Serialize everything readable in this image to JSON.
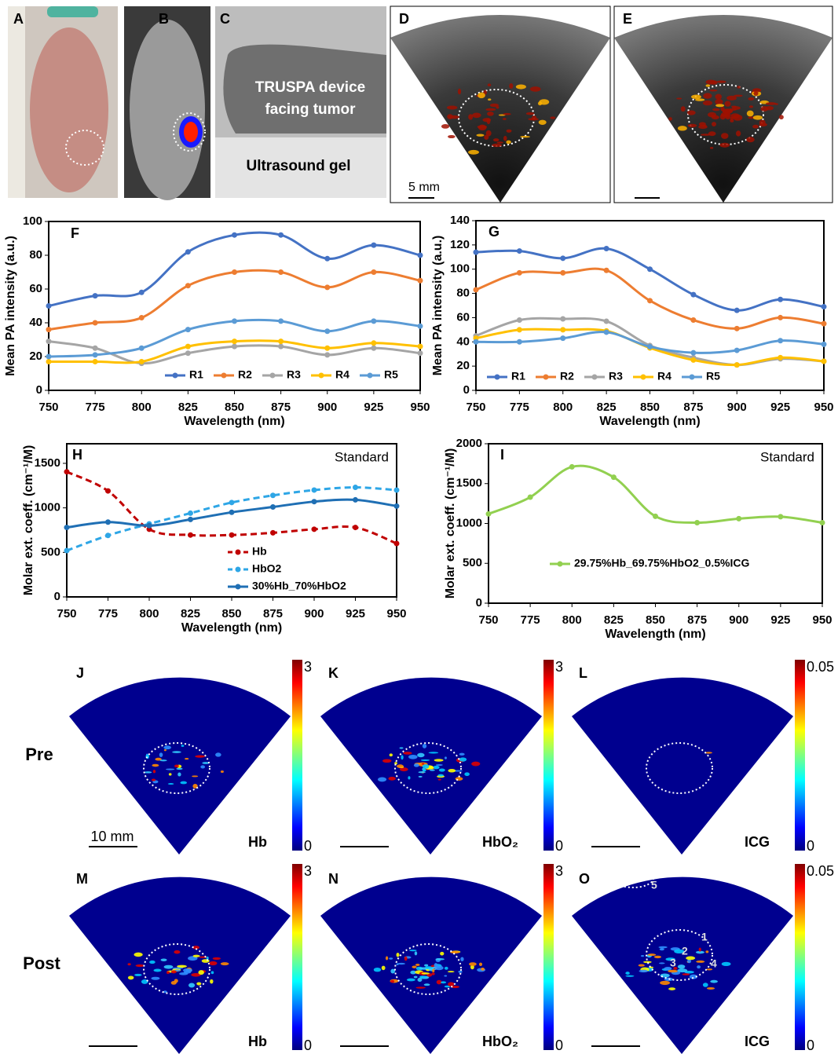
{
  "images": {
    "labels": [
      "A",
      "B",
      "C",
      "D",
      "E",
      "F",
      "G",
      "H",
      "I",
      "J",
      "K",
      "L",
      "M",
      "N",
      "O"
    ],
    "c_device_line1": "TRUSPA device",
    "c_device_line2": "facing tumor",
    "c_gel": "Ultrasound gel",
    "d_scale": "5 mm",
    "j_scale": "10 mm",
    "rows": [
      "Pre",
      "Post"
    ],
    "maps": [
      "Hb",
      "HbO₂",
      "ICG"
    ],
    "colorbar_max": [
      "3",
      "3",
      "0.05"
    ],
    "colorbar_min": "0",
    "regions": [
      "1",
      "2",
      "3",
      "4",
      "5"
    ]
  },
  "chart_data": [
    {
      "type": "line",
      "x_label": "Wavelength (nm)",
      "y_label": "Mean PA intensity (a.u.)",
      "x": [
        750,
        775,
        800,
        825,
        850,
        875,
        900,
        925,
        950
      ],
      "xlim": [
        750,
        950
      ],
      "xticks": [
        750,
        775,
        800,
        825,
        850,
        875,
        900,
        925,
        950
      ],
      "ylim": [
        0,
        100
      ],
      "yticks": [
        0,
        20,
        40,
        60,
        80,
        100
      ],
      "legend": "lower center",
      "series": [
        {
          "name": "R1",
          "color": "#4472c4",
          "values": [
            50,
            56,
            58,
            82,
            92,
            92,
            78,
            86,
            80
          ]
        },
        {
          "name": "R2",
          "color": "#ed7d31",
          "values": [
            36,
            40,
            43,
            62,
            70,
            70,
            61,
            70,
            65
          ]
        },
        {
          "name": "R3",
          "color": "#a5a5a5",
          "values": [
            29,
            25,
            16,
            22,
            26,
            26,
            21,
            25,
            22
          ]
        },
        {
          "name": "R4",
          "color": "#ffc000",
          "values": [
            17,
            17,
            17,
            26,
            29,
            29,
            25,
            28,
            26
          ]
        },
        {
          "name": "R5",
          "color": "#5b9bd5",
          "values": [
            20,
            21,
            25,
            36,
            41,
            41,
            35,
            41,
            38
          ]
        }
      ]
    },
    {
      "type": "line",
      "x_label": "Wavelength (nm)",
      "y_label": "Mean PA intensity (a.u.)",
      "x": [
        750,
        775,
        800,
        825,
        850,
        875,
        900,
        925,
        950
      ],
      "xlim": [
        750,
        950
      ],
      "xticks": [
        750,
        775,
        800,
        825,
        850,
        875,
        900,
        925,
        950
      ],
      "ylim": [
        0,
        140
      ],
      "yticks": [
        0,
        20,
        40,
        60,
        80,
        100,
        120,
        140
      ],
      "legend": "lower left",
      "series": [
        {
          "name": "R1",
          "color": "#4472c4",
          "values": [
            114,
            115,
            109,
            117,
            100,
            79,
            66,
            75,
            69
          ]
        },
        {
          "name": "R2",
          "color": "#ed7d31",
          "values": [
            83,
            97,
            97,
            99,
            74,
            58,
            51,
            60,
            55
          ]
        },
        {
          "name": "R3",
          "color": "#a5a5a5",
          "values": [
            45,
            58,
            59,
            57,
            37,
            27,
            21,
            26,
            24
          ]
        },
        {
          "name": "R4",
          "color": "#ffc000",
          "values": [
            43,
            50,
            50,
            49,
            35,
            25,
            21,
            27,
            24
          ]
        },
        {
          "name": "R5",
          "color": "#5b9bd5",
          "values": [
            40,
            40,
            43,
            48,
            36,
            31,
            33,
            41,
            38
          ]
        }
      ]
    },
    {
      "type": "line",
      "x_label": "Wavelength (nm)",
      "y_label": "Molar ext. coeff. (cm⁻¹/M)",
      "annotation": "Standard",
      "x": [
        750,
        775,
        800,
        825,
        850,
        875,
        900,
        925,
        950
      ],
      "xlim": [
        750,
        950
      ],
      "xticks": [
        750,
        775,
        800,
        825,
        850,
        875,
        900,
        925,
        950
      ],
      "ylim": [
        0,
        1720
      ],
      "yticks": [
        0,
        500,
        1000,
        1500
      ],
      "legend": "lower center",
      "series": [
        {
          "name": "Hb",
          "color": "#c00000",
          "dashed": true,
          "values": [
            1405,
            1190,
            760,
            695,
            695,
            720,
            760,
            780,
            600
          ]
        },
        {
          "name": "HbO2",
          "color": "#2ea6e6",
          "dashed": true,
          "values": [
            520,
            690,
            820,
            940,
            1060,
            1140,
            1200,
            1230,
            1200
          ]
        },
        {
          "name": "30%Hb_70%HbO2",
          "color": "#1f6fb4",
          "values": [
            780,
            840,
            800,
            870,
            950,
            1010,
            1070,
            1090,
            1020
          ]
        }
      ]
    },
    {
      "type": "line",
      "x_label": "Wavelength (nm)",
      "y_label": "Molar ext. coeff. (cm⁻¹/M)",
      "annotation": "Standard",
      "x": [
        750,
        775,
        800,
        825,
        850,
        875,
        900,
        925,
        950
      ],
      "xlim": [
        750,
        950
      ],
      "xticks": [
        750,
        775,
        800,
        825,
        850,
        875,
        900,
        925,
        950
      ],
      "ylim": [
        0,
        2000
      ],
      "yticks": [
        0,
        500,
        1000,
        1500,
        2000
      ],
      "legend": "lower center",
      "series": [
        {
          "name": "29.75%Hb_69.75%HbO2_0.5%ICG",
          "color": "#92d050",
          "values": [
            1120,
            1330,
            1710,
            1580,
            1090,
            1010,
            1060,
            1085,
            1010
          ]
        }
      ]
    }
  ]
}
